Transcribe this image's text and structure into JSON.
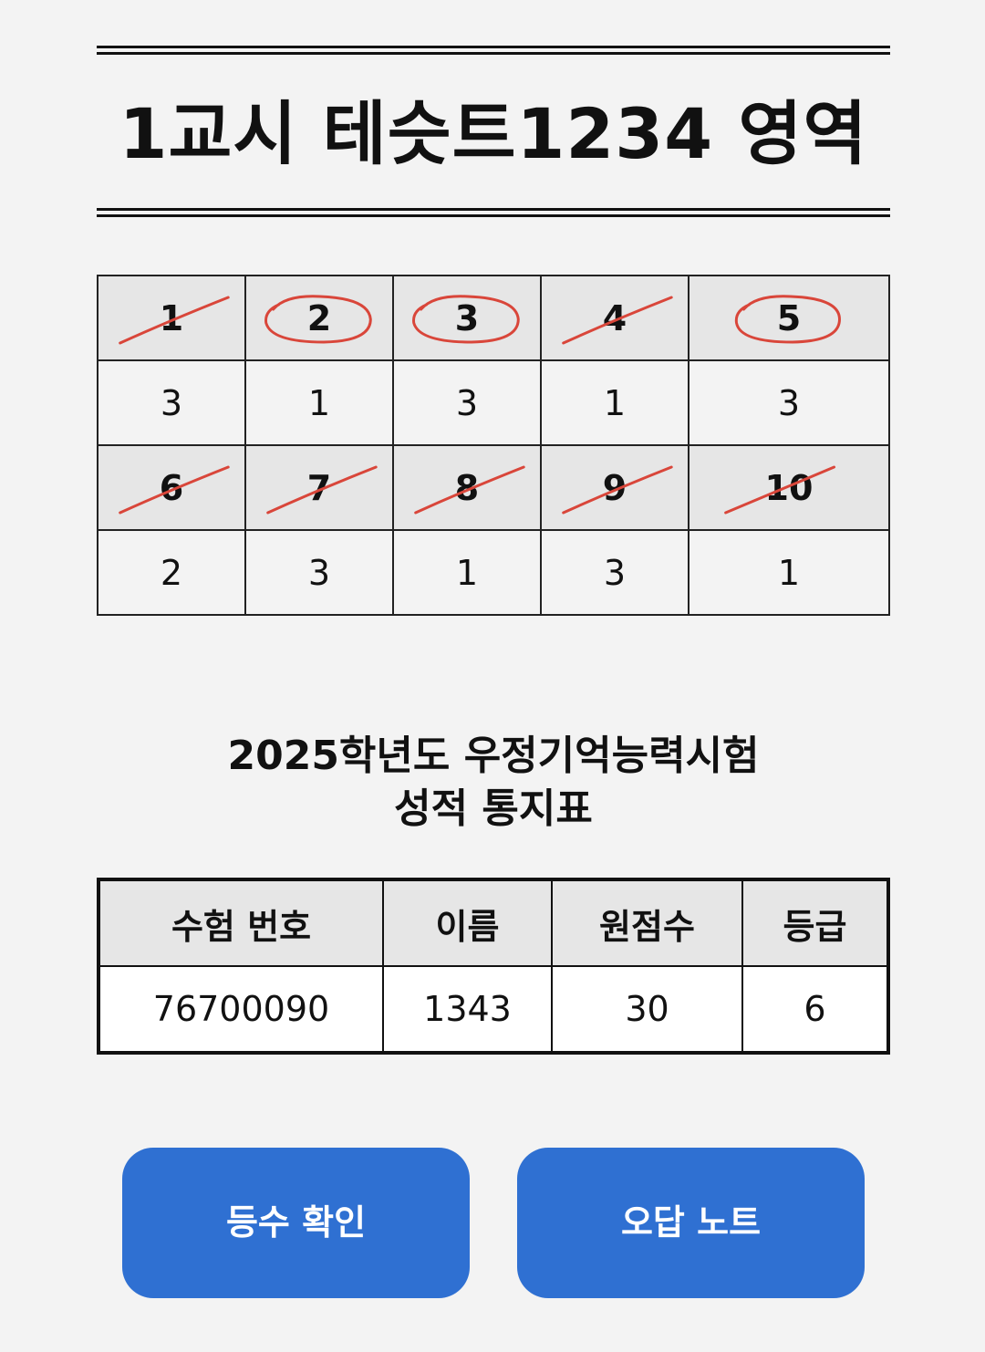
{
  "header": {
    "title": "1교시 테슷트1234 영역"
  },
  "answer_grid": {
    "rows": [
      {
        "questions": [
          {
            "number": "1",
            "mark": "slash"
          },
          {
            "number": "2",
            "mark": "circle"
          },
          {
            "number": "3",
            "mark": "circle"
          },
          {
            "number": "4",
            "mark": "slash"
          },
          {
            "number": "5",
            "mark": "circle"
          }
        ],
        "answers": [
          "3",
          "1",
          "3",
          "1",
          "3"
        ]
      },
      {
        "questions": [
          {
            "number": "6",
            "mark": "slash"
          },
          {
            "number": "7",
            "mark": "slash"
          },
          {
            "number": "8",
            "mark": "slash"
          },
          {
            "number": "9",
            "mark": "slash"
          },
          {
            "number": "10",
            "mark": "slash"
          }
        ],
        "answers": [
          "2",
          "3",
          "1",
          "3",
          "1"
        ]
      }
    ],
    "mark_color": "#d9463a"
  },
  "report": {
    "title_line1": "2025학년도 우정기억능력시험",
    "title_line2": "성적 통지표",
    "headers": {
      "exam_number": "수험 번호",
      "name": "이름",
      "raw_score": "원점수",
      "grade": "등급"
    },
    "values": {
      "exam_number": "76700090",
      "name": "1343",
      "raw_score": "30",
      "grade": "6"
    }
  },
  "buttons": {
    "rank_label": "등수 확인",
    "wrong_note_label": "오답 노트",
    "color": "#2f70d2"
  }
}
